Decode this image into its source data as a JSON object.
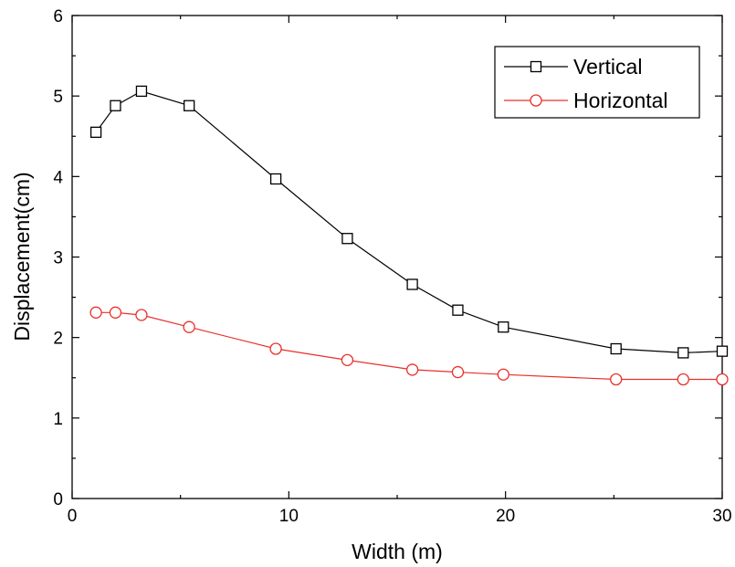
{
  "chart_data": {
    "type": "line",
    "xlabel": "Width (m)",
    "ylabel": "Displacement(cm)",
    "xlim": [
      0,
      30
    ],
    "ylim": [
      0,
      6
    ],
    "xticks": [
      "0",
      "10",
      "20",
      "30"
    ],
    "yticks": [
      "0",
      "1",
      "2",
      "3",
      "4",
      "5",
      "6"
    ],
    "grid": false,
    "legend_position": "top-right",
    "series": [
      {
        "name": "Vertical",
        "color": "#000000",
        "marker": "square",
        "x": [
          1.1,
          2.0,
          3.2,
          5.4,
          9.4,
          12.7,
          15.7,
          17.8,
          19.9,
          25.1,
          28.2,
          30.0
        ],
        "y": [
          4.55,
          4.88,
          5.06,
          4.88,
          3.97,
          3.23,
          2.66,
          2.34,
          2.13,
          1.86,
          1.81,
          1.83
        ]
      },
      {
        "name": "Horizontal",
        "color": "#e8302a",
        "marker": "circle",
        "x": [
          1.1,
          2.0,
          3.2,
          5.4,
          9.4,
          12.7,
          15.7,
          17.8,
          19.9,
          25.1,
          28.2,
          30.0
        ],
        "y": [
          2.31,
          2.31,
          2.28,
          2.13,
          1.86,
          1.72,
          1.6,
          1.57,
          1.54,
          1.48,
          1.48,
          1.48
        ]
      }
    ]
  }
}
